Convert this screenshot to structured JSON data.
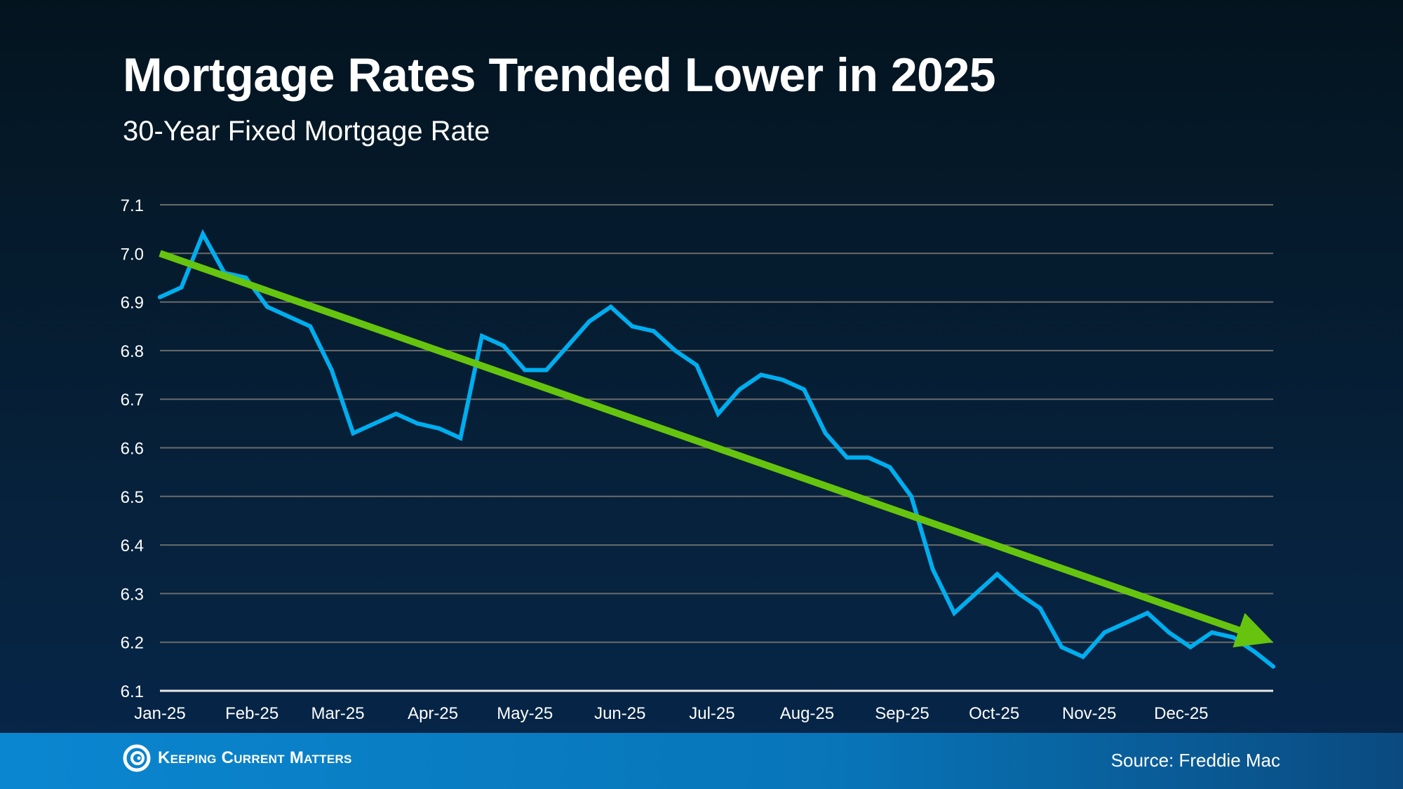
{
  "header": {
    "title": "Mortgage Rates Trended Lower in 2025",
    "subtitle": "30-Year Fixed Mortgage Rate"
  },
  "footer": {
    "logo_text": "Keeping Current Matters",
    "source": "Source: Freddie Mac"
  },
  "chart_data": {
    "type": "line",
    "title": "Mortgage Rates Trended Lower in 2025",
    "subtitle": "30-Year Fixed Mortgage Rate",
    "ylim": [
      6.1,
      7.1
    ],
    "yticks": [
      "7.1",
      "7.0",
      "6.9",
      "6.8",
      "6.7",
      "6.6",
      "6.5",
      "6.4",
      "6.3",
      "6.2",
      "6.1"
    ],
    "xticks": [
      "Jan-25",
      "Feb-25",
      "Mar-25",
      "Apr-25",
      "May-25",
      "Jun-25",
      "Jul-25",
      "Aug-25",
      "Sep-25",
      "Oct-25",
      "Nov-25",
      "Dec-25"
    ],
    "grid": true,
    "colors": {
      "series": "#00aeef",
      "trend": "#66c40f",
      "grid": "#6b6b6b"
    },
    "x": [
      "2025-01-02",
      "2025-01-09",
      "2025-01-16",
      "2025-01-23",
      "2025-01-30",
      "2025-02-06",
      "2025-02-13",
      "2025-02-20",
      "2025-02-27",
      "2025-03-06",
      "2025-03-13",
      "2025-03-20",
      "2025-03-27",
      "2025-04-03",
      "2025-04-10",
      "2025-04-17",
      "2025-04-24",
      "2025-05-01",
      "2025-05-08",
      "2025-05-15",
      "2025-05-22",
      "2025-05-29",
      "2025-06-05",
      "2025-06-12",
      "2025-06-19",
      "2025-06-26",
      "2025-07-03",
      "2025-07-10",
      "2025-07-17",
      "2025-07-24",
      "2025-07-31",
      "2025-08-07",
      "2025-08-14",
      "2025-08-21",
      "2025-08-28",
      "2025-09-04",
      "2025-09-11",
      "2025-09-18",
      "2025-09-25",
      "2025-10-02",
      "2025-10-09",
      "2025-10-16",
      "2025-10-23",
      "2025-10-30",
      "2025-11-06",
      "2025-11-13",
      "2025-11-20",
      "2025-11-27",
      "2025-12-04",
      "2025-12-11",
      "2025-12-18",
      "2025-12-25",
      "2025-12-31"
    ],
    "series": [
      {
        "values": [
          6.91,
          6.93,
          7.04,
          6.96,
          6.95,
          6.89,
          6.87,
          6.85,
          6.76,
          6.63,
          6.65,
          6.67,
          6.65,
          6.64,
          6.62,
          6.83,
          6.81,
          6.76,
          6.76,
          6.81,
          6.86,
          6.89,
          6.85,
          6.84,
          6.8,
          6.77,
          6.67,
          6.72,
          6.75,
          6.74,
          6.72,
          6.63,
          6.58,
          6.58,
          6.56,
          6.5,
          6.35,
          6.26,
          6.3,
          6.34,
          6.3,
          6.27,
          6.19,
          6.17,
          6.22,
          6.24,
          6.26,
          6.22,
          6.19,
          6.22,
          6.21,
          6.18,
          6.15
        ]
      }
    ],
    "trendline": {
      "start": [
        "2025-01-02",
        7.0
      ],
      "end": [
        "2025-12-31",
        6.2
      ],
      "arrow": true
    }
  }
}
